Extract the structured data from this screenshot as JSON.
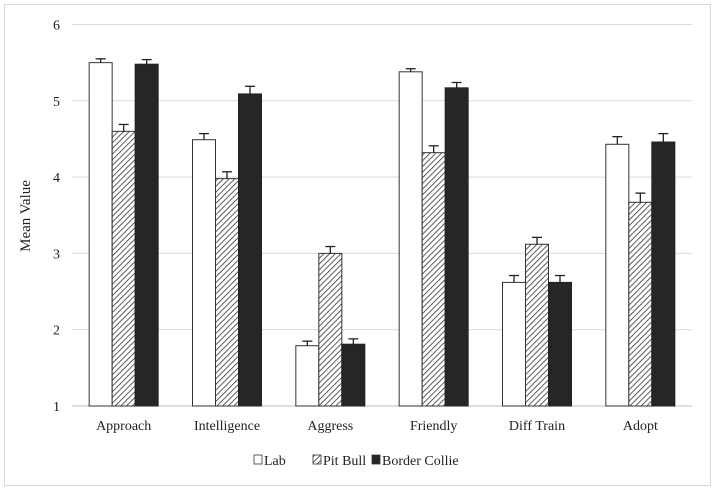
{
  "chart_data": {
    "type": "bar",
    "title": "",
    "xlabel": "",
    "ylabel": "Mean Value",
    "ylim": [
      1,
      6
    ],
    "yticks": [
      "1",
      "2",
      "3",
      "4",
      "5",
      "6"
    ],
    "grid": true,
    "legend_position": "bottom-center",
    "categories": [
      "Approach",
      "Intelligence",
      "Aggress",
      "Friendly",
      "Diff Train",
      "Adopt"
    ],
    "series": [
      {
        "name": "Lab",
        "fill": "#ffffff",
        "pattern": "none",
        "values": [
          5.5,
          4.49,
          1.79,
          5.38,
          2.62,
          4.43
        ],
        "errors": [
          0.05,
          0.08,
          0.06,
          0.04,
          0.09,
          0.1
        ]
      },
      {
        "name": "Pit Bull",
        "fill": "#ffffff",
        "pattern": "hatch",
        "values": [
          4.6,
          3.98,
          3.0,
          4.32,
          3.12,
          3.67
        ],
        "errors": [
          0.09,
          0.09,
          0.09,
          0.09,
          0.09,
          0.12
        ]
      },
      {
        "name": "Border Collie",
        "fill": "#262626",
        "pattern": "none",
        "values": [
          5.48,
          5.09,
          1.81,
          5.17,
          2.62,
          4.46
        ],
        "errors": [
          0.06,
          0.1,
          0.07,
          0.07,
          0.09,
          0.11
        ]
      }
    ]
  }
}
